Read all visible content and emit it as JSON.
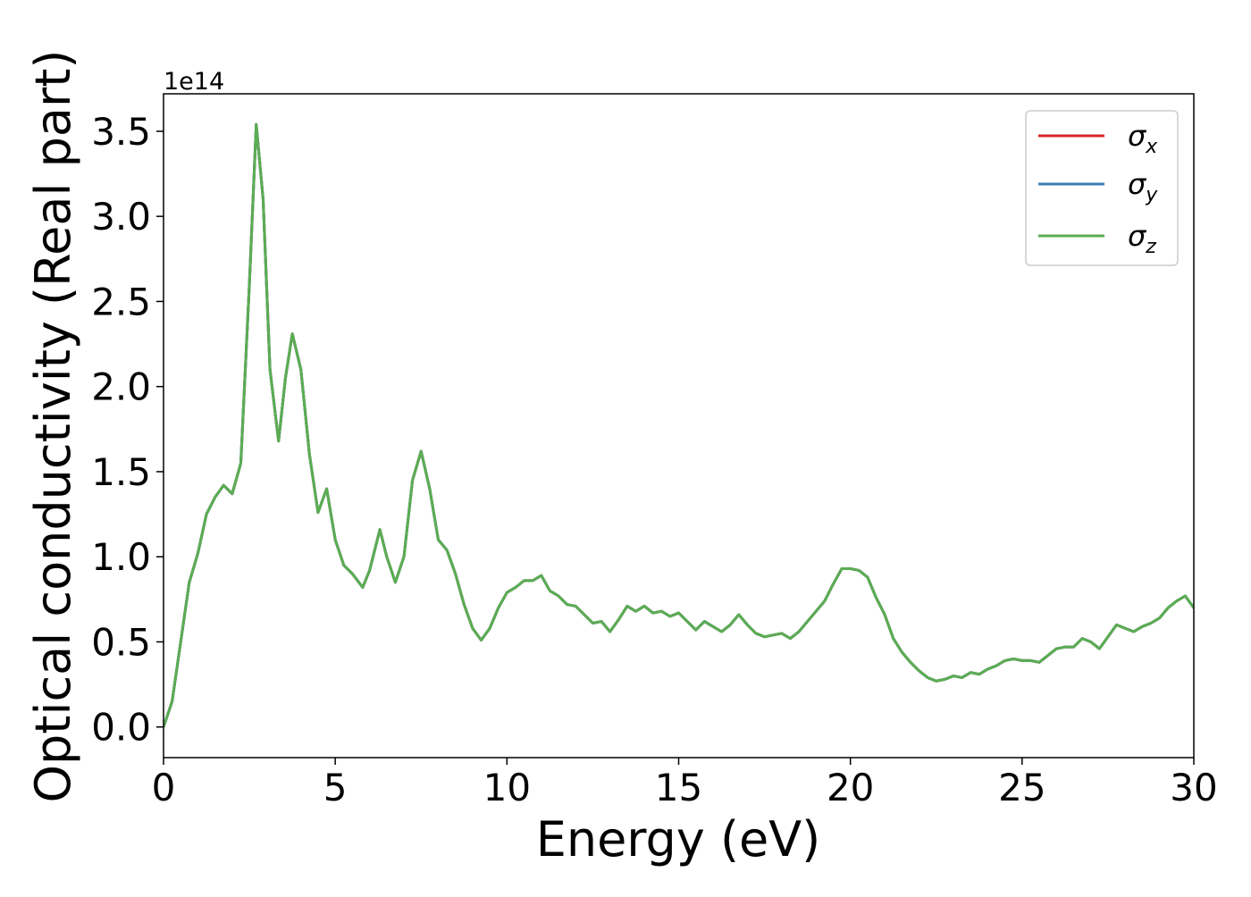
{
  "chart_data": {
    "type": "line",
    "xlabel": "Energy (eV)",
    "ylabel": "Optical conductivity (Real part)",
    "offset_label": "1e14",
    "xlim": [
      0,
      30
    ],
    "xticks": [
      0,
      5,
      10,
      15,
      20,
      25,
      30
    ],
    "ylim": [
      -0.18,
      3.72
    ],
    "yticks": [
      {
        "value": 0,
        "label": "0.0"
      },
      0.5,
      {
        "value": 1,
        "label": "1.0"
      },
      1.5,
      {
        "value": 2,
        "label": "2.0"
      },
      2.5,
      {
        "value": 3,
        "label": "3.0"
      },
      3.5
    ],
    "legend": "upper right",
    "x": [
      0,
      0.25,
      0.5,
      0.75,
      1,
      1.25,
      1.5,
      1.75,
      2,
      2.25,
      2.5,
      2.7,
      2.9,
      3.1,
      3.35,
      3.55,
      3.75,
      4,
      4.25,
      4.5,
      4.75,
      5,
      5.25,
      5.5,
      5.8,
      6,
      6.3,
      6.5,
      6.75,
      7,
      7.25,
      7.5,
      7.75,
      8,
      8.25,
      8.5,
      8.75,
      9,
      9.25,
      9.5,
      9.75,
      10,
      10.25,
      10.5,
      10.75,
      11,
      11.25,
      11.5,
      11.75,
      12,
      12.25,
      12.5,
      12.75,
      13,
      13.25,
      13.5,
      13.75,
      14,
      14.25,
      14.5,
      14.75,
      15,
      15.25,
      15.5,
      15.75,
      16,
      16.25,
      16.5,
      16.75,
      17,
      17.25,
      17.5,
      17.75,
      18,
      18.25,
      18.5,
      18.75,
      19,
      19.25,
      19.5,
      19.75,
      20,
      20.25,
      20.5,
      20.75,
      21,
      21.25,
      21.5,
      21.75,
      22,
      22.25,
      22.5,
      22.75,
      23,
      23.25,
      23.5,
      23.75,
      24,
      24.25,
      24.5,
      24.75,
      25,
      25.25,
      25.5,
      25.75,
      26,
      26.25,
      26.5,
      26.75,
      27,
      27.25,
      27.5,
      27.75,
      28,
      28.25,
      28.5,
      28.75,
      29,
      29.25,
      29.5,
      29.75,
      30
    ],
    "series": [
      {
        "name": "σx",
        "color": "#d62728",
        "values": [
          0,
          0.15,
          0.5,
          0.85,
          1.02,
          1.25,
          1.35,
          1.42,
          1.37,
          1.55,
          2.6,
          3.54,
          3.1,
          2.1,
          1.68,
          2.05,
          2.31,
          2.1,
          1.6,
          1.26,
          1.4,
          1.1,
          0.95,
          0.9,
          0.82,
          0.92,
          1.16,
          1,
          0.85,
          1,
          1.45,
          1.62,
          1.4,
          1.1,
          1.04,
          0.9,
          0.72,
          0.58,
          0.51,
          0.58,
          0.7,
          0.79,
          0.82,
          0.86,
          0.86,
          0.89,
          0.8,
          0.77,
          0.72,
          0.71,
          0.66,
          0.61,
          0.62,
          0.56,
          0.63,
          0.71,
          0.68,
          0.71,
          0.67,
          0.68,
          0.65,
          0.67,
          0.62,
          0.57,
          0.62,
          0.59,
          0.56,
          0.6,
          0.66,
          0.6,
          0.55,
          0.53,
          0.54,
          0.55,
          0.52,
          0.56,
          0.62,
          0.68,
          0.74,
          0.84,
          0.93,
          0.93,
          0.92,
          0.88,
          0.76,
          0.66,
          0.52,
          0.44,
          0.38,
          0.33,
          0.29,
          0.27,
          0.28,
          0.3,
          0.29,
          0.32,
          0.31,
          0.34,
          0.36,
          0.39,
          0.4,
          0.39,
          0.39,
          0.38,
          0.42,
          0.46,
          0.47,
          0.47,
          0.52,
          0.5,
          0.46,
          0.53,
          0.6,
          0.58,
          0.56,
          0.59,
          0.61,
          0.64,
          0.7,
          0.74,
          0.77,
          0.7
        ]
      },
      {
        "name": "σy",
        "color": "#3a7db8",
        "values": [
          0,
          0.15,
          0.5,
          0.85,
          1.02,
          1.25,
          1.35,
          1.42,
          1.37,
          1.55,
          2.6,
          3.54,
          3.1,
          2.1,
          1.68,
          2.05,
          2.31,
          2.1,
          1.6,
          1.26,
          1.4,
          1.1,
          0.95,
          0.9,
          0.82,
          0.92,
          1.16,
          1,
          0.85,
          1,
          1.45,
          1.62,
          1.4,
          1.1,
          1.04,
          0.9,
          0.72,
          0.58,
          0.51,
          0.58,
          0.7,
          0.79,
          0.82,
          0.86,
          0.86,
          0.89,
          0.8,
          0.77,
          0.72,
          0.71,
          0.66,
          0.61,
          0.62,
          0.56,
          0.63,
          0.71,
          0.68,
          0.71,
          0.67,
          0.68,
          0.65,
          0.67,
          0.62,
          0.57,
          0.62,
          0.59,
          0.56,
          0.6,
          0.66,
          0.6,
          0.55,
          0.53,
          0.54,
          0.55,
          0.52,
          0.56,
          0.62,
          0.68,
          0.74,
          0.84,
          0.93,
          0.93,
          0.92,
          0.88,
          0.76,
          0.66,
          0.52,
          0.44,
          0.38,
          0.33,
          0.29,
          0.27,
          0.28,
          0.3,
          0.29,
          0.32,
          0.31,
          0.34,
          0.36,
          0.39,
          0.4,
          0.39,
          0.39,
          0.38,
          0.42,
          0.46,
          0.47,
          0.47,
          0.52,
          0.5,
          0.46,
          0.53,
          0.6,
          0.58,
          0.56,
          0.59,
          0.61,
          0.64,
          0.7,
          0.74,
          0.77,
          0.7
        ]
      },
      {
        "name": "σz",
        "color": "#5aad52",
        "values": [
          0,
          0.15,
          0.5,
          0.85,
          1.02,
          1.25,
          1.35,
          1.42,
          1.37,
          1.55,
          2.6,
          3.54,
          3.1,
          2.1,
          1.68,
          2.05,
          2.31,
          2.1,
          1.6,
          1.26,
          1.4,
          1.1,
          0.95,
          0.9,
          0.82,
          0.92,
          1.16,
          1,
          0.85,
          1,
          1.45,
          1.62,
          1.4,
          1.1,
          1.04,
          0.9,
          0.72,
          0.58,
          0.51,
          0.58,
          0.7,
          0.79,
          0.82,
          0.86,
          0.86,
          0.89,
          0.8,
          0.77,
          0.72,
          0.71,
          0.66,
          0.61,
          0.62,
          0.56,
          0.63,
          0.71,
          0.68,
          0.71,
          0.67,
          0.68,
          0.65,
          0.67,
          0.62,
          0.57,
          0.62,
          0.59,
          0.56,
          0.6,
          0.66,
          0.6,
          0.55,
          0.53,
          0.54,
          0.55,
          0.52,
          0.56,
          0.62,
          0.68,
          0.74,
          0.84,
          0.93,
          0.93,
          0.92,
          0.88,
          0.76,
          0.66,
          0.52,
          0.44,
          0.38,
          0.33,
          0.29,
          0.27,
          0.28,
          0.3,
          0.29,
          0.32,
          0.31,
          0.34,
          0.36,
          0.39,
          0.4,
          0.39,
          0.39,
          0.38,
          0.42,
          0.46,
          0.47,
          0.47,
          0.52,
          0.5,
          0.46,
          0.53,
          0.6,
          0.58,
          0.56,
          0.59,
          0.61,
          0.64,
          0.7,
          0.74,
          0.77,
          0.7
        ]
      }
    ]
  }
}
